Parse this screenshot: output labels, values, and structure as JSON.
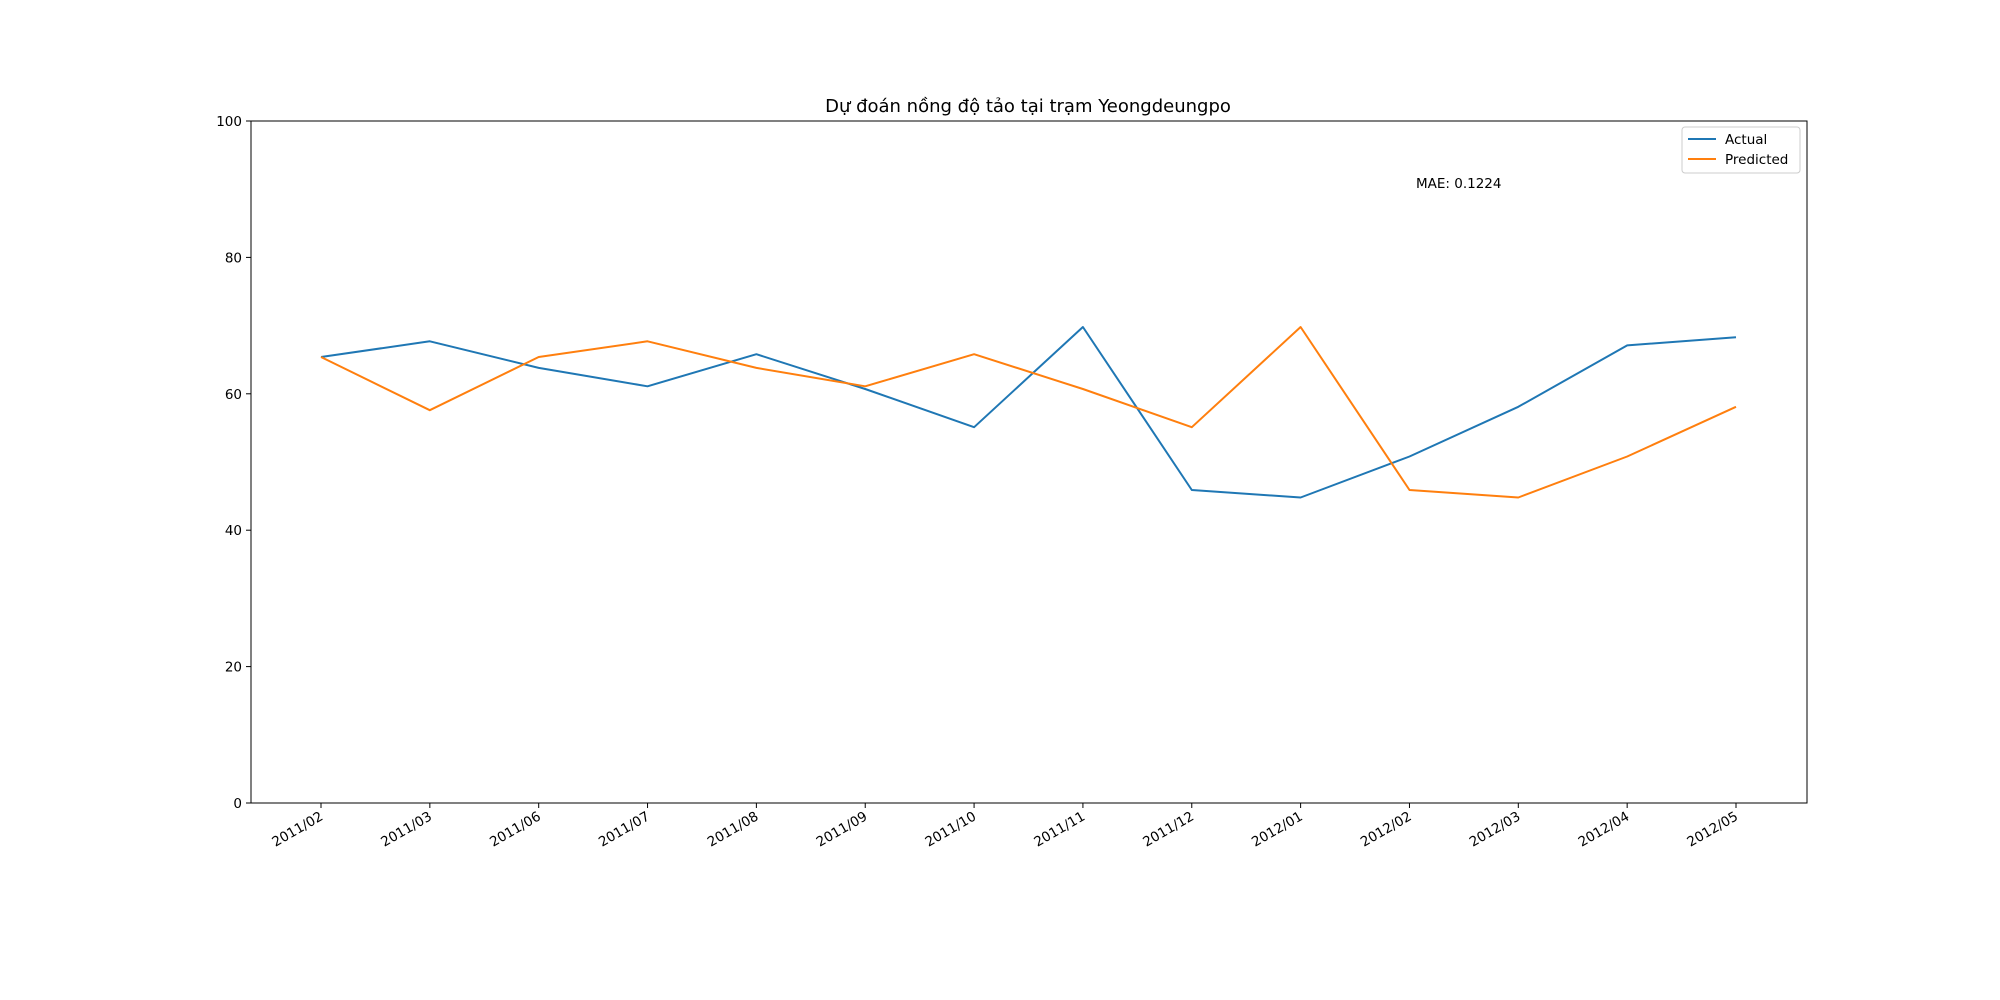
{
  "chart_data": {
    "type": "line",
    "title": "Dự đoán nồng độ tảo tại trạm Yeongdeungpo",
    "xlabel": "",
    "ylabel": "",
    "categories": [
      "2011/02",
      "2011/03",
      "2011/06",
      "2011/07",
      "2011/08",
      "2011/09",
      "2011/10",
      "2011/11",
      "2011/12",
      "2012/01",
      "2012/02",
      "2012/03",
      "2012/04",
      "2012/05"
    ],
    "ylim": [
      0,
      100
    ],
    "yticks": [
      "0",
      "20",
      "40",
      "60",
      "80",
      "100"
    ],
    "grid": false,
    "legend": "top-right",
    "annotation": "MAE: 0.1224",
    "series": [
      {
        "name": "Actual",
        "color": "#1f77b4",
        "values": [
          65.4,
          67.7,
          63.8,
          61.1,
          65.8,
          60.7,
          55.1,
          69.8,
          45.9,
          44.8,
          50.8,
          58.1,
          67.1,
          68.3
        ]
      },
      {
        "name": "Predicted",
        "color": "#ff7f0e",
        "values": [
          65.4,
          57.6,
          65.4,
          67.7,
          63.8,
          61.1,
          65.8,
          60.7,
          55.1,
          69.8,
          45.9,
          44.8,
          50.8,
          58.1
        ]
      }
    ]
  }
}
